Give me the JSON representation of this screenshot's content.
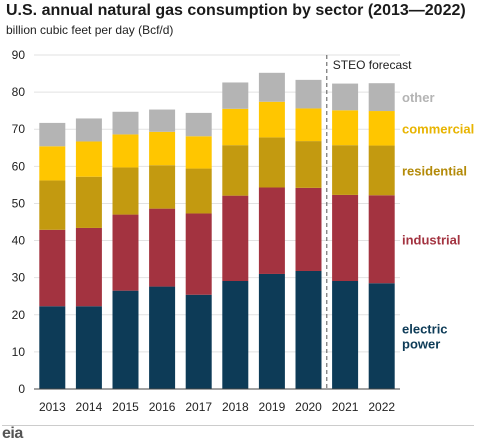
{
  "chart_data": {
    "type": "bar",
    "stacked": true,
    "title": "U.S. annual natural gas consumption by sector (2013—2022)",
    "subtitle": "billion cubic feet per day (Bcf/d)",
    "categories": [
      "2013",
      "2014",
      "2015",
      "2016",
      "2017",
      "2018",
      "2019",
      "2020",
      "2021",
      "2022"
    ],
    "ylim": [
      0,
      90
    ],
    "yticks": [
      0,
      10,
      20,
      30,
      40,
      50,
      60,
      70,
      80,
      90
    ],
    "grid": true,
    "forecast_label": "STEO forecast",
    "forecast_from_category": "2021",
    "series": [
      {
        "name": "electric power",
        "color": "#0d3b57",
        "values": [
          22.3,
          22.3,
          26.5,
          27.6,
          25.4,
          29.1,
          31.0,
          31.8,
          29.1,
          28.5
        ]
      },
      {
        "name": "industrial",
        "color": "#a33340",
        "values": [
          20.6,
          21.1,
          20.5,
          21.0,
          21.9,
          23.0,
          23.3,
          22.4,
          23.2,
          23.7
        ]
      },
      {
        "name": "residential",
        "color": "#c39a10",
        "values": [
          13.3,
          13.8,
          12.7,
          11.7,
          12.1,
          13.6,
          13.5,
          12.6,
          13.4,
          13.4
        ]
      },
      {
        "name": "commercial",
        "color": "#ffc600",
        "values": [
          9.2,
          9.5,
          8.9,
          9.0,
          8.7,
          9.8,
          9.6,
          8.8,
          9.4,
          9.3
        ]
      },
      {
        "name": "other",
        "color": "#b4b4b4",
        "values": [
          6.3,
          6.2,
          6.1,
          6.0,
          6.3,
          7.1,
          7.8,
          7.7,
          7.2,
          7.5
        ]
      }
    ],
    "legend_labels": [
      {
        "series": "other",
        "lines": [
          "other"
        ],
        "color": "#b4b4b4"
      },
      {
        "series": "commercial",
        "lines": [
          "commercial"
        ],
        "color": "#e8b400"
      },
      {
        "series": "residential",
        "lines": [
          "residential"
        ],
        "color": "#b38a08"
      },
      {
        "series": "industrial",
        "lines": [
          "industrial"
        ],
        "color": "#a33340"
      },
      {
        "series": "electric power",
        "lines": [
          "electric",
          "power"
        ],
        "color": "#0d3b57"
      }
    ]
  },
  "logo_text": "eia"
}
